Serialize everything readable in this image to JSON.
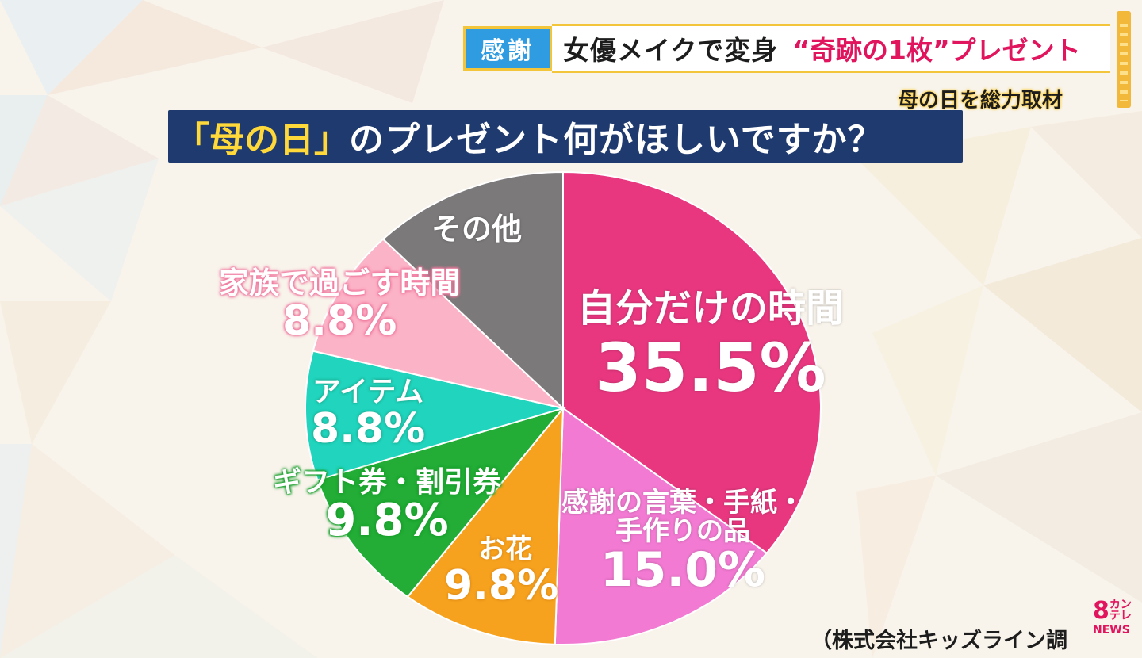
{
  "banner": {
    "tag": "感謝",
    "title": "女優メイクで変身",
    "title_accent": "“奇跡の1枚”プレゼント"
  },
  "sub_caption": "母の日を総力取材",
  "question": {
    "highlight": "「母の日」",
    "rest": "のプレゼント何がほしいですか？"
  },
  "source": "（株式会社キッズライン調",
  "logo": {
    "number": "8",
    "kana": "カン\nテレ",
    "kana_top": "カン",
    "kana_bottom": "テレ",
    "news": "NEWS"
  },
  "colors": {
    "pink": "#e8377f",
    "light_pink": "#f27ad2",
    "orange": "#f6a21f",
    "green": "#23ad37",
    "teal": "#20d4bd",
    "baby_pink": "#fbb3c7",
    "gray": "#7b7979",
    "navy": "#1e3a6e",
    "yellow": "#ffd83a"
  },
  "chart_data": {
    "type": "pie",
    "title": "「母の日」のプレゼント何がほしいですか？",
    "unit": "%",
    "slices": [
      {
        "label": "自分だけの時間",
        "value": 35.5,
        "value_label": "35.5%",
        "color": "#e8377f"
      },
      {
        "label": "感謝の言葉・手紙・手作りの品",
        "label_line1": "感謝の言葉・手紙・",
        "label_line2": "手作りの品",
        "value": 15.0,
        "value_label": "15.0%",
        "color": "#f27ad2"
      },
      {
        "label": "お花",
        "value": 9.8,
        "value_label": "9.8%",
        "color": "#f6a21f"
      },
      {
        "label": "ギフト券・割引券",
        "value": 9.8,
        "value_label": "9.8%",
        "color": "#23ad37"
      },
      {
        "label": "アイテム",
        "value": 8.8,
        "value_label": "8.8%",
        "color": "#20d4bd"
      },
      {
        "label": "家族で過ごす時間",
        "value": 8.8,
        "value_label": "8.8%",
        "color": "#fbb3c7"
      },
      {
        "label": "その他",
        "value": 12.3,
        "color": "#7b7979"
      }
    ]
  }
}
